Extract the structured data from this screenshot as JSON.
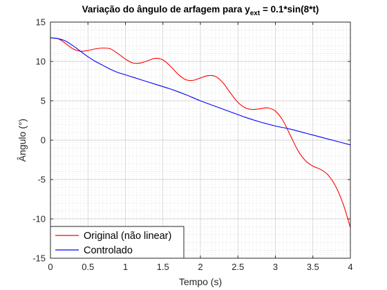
{
  "chart_data": {
    "type": "line",
    "title": {
      "prefix": "Variação do ângulo de arfagem para y",
      "subscript": "ext",
      "suffix": " = 0.1*sin(8*t)"
    },
    "xlabel": "Tempo (s)",
    "ylabel": "Ângulo (°)",
    "xlim": [
      0,
      4
    ],
    "ylim": [
      -15,
      15
    ],
    "xticks": [
      0,
      0.5,
      1,
      1.5,
      2,
      2.5,
      3,
      3.5,
      4
    ],
    "yticks": [
      -15,
      -10,
      -5,
      0,
      5,
      10,
      15
    ],
    "xtick_labels": [
      "0",
      "0.5",
      "1",
      "1.5",
      "2",
      "2.5",
      "3",
      "3.5",
      "4"
    ],
    "ytick_labels": [
      "-15",
      "-10",
      "-5",
      "0",
      "5",
      "10",
      "15"
    ],
    "grid": "major and minor, dotted",
    "legend_position": "bottom-left",
    "series": [
      {
        "name": "Original (não linear)",
        "color": "#ff0000",
        "x": [
          0,
          0.1,
          0.2,
          0.3,
          0.4,
          0.5,
          0.6,
          0.7,
          0.8,
          0.9,
          1.0,
          1.1,
          1.2,
          1.3,
          1.4,
          1.5,
          1.6,
          1.7,
          1.8,
          1.9,
          2.0,
          2.1,
          2.2,
          2.3,
          2.4,
          2.5,
          2.6,
          2.7,
          2.8,
          2.9,
          3.0,
          3.1,
          3.2,
          3.3,
          3.4,
          3.5,
          3.6,
          3.7,
          3.8,
          3.9,
          4.0
        ],
        "y": [
          13.0,
          12.9,
          12.3,
          11.6,
          11.3,
          11.4,
          11.6,
          11.7,
          11.6,
          11.0,
          10.3,
          9.8,
          9.8,
          10.1,
          10.4,
          10.2,
          9.4,
          8.4,
          7.7,
          7.6,
          7.9,
          8.2,
          8.1,
          7.3,
          6.0,
          4.8,
          4.1,
          3.9,
          4.0,
          4.1,
          3.7,
          2.5,
          0.6,
          -1.3,
          -2.6,
          -3.3,
          -3.7,
          -4.4,
          -5.8,
          -8.0,
          -11.1
        ]
      },
      {
        "name": "Controlado",
        "color": "#0000ff",
        "x": [
          0,
          0.1,
          0.2,
          0.3,
          0.4,
          0.5,
          0.6,
          0.7,
          0.8,
          0.9,
          1.0,
          1.2,
          1.4,
          1.6,
          1.8,
          2.0,
          2.2,
          2.4,
          2.6,
          2.8,
          3.0,
          3.2,
          3.4,
          3.6,
          3.8,
          4.0
        ],
        "y": [
          13.0,
          12.9,
          12.6,
          12.0,
          11.3,
          10.6,
          10.0,
          9.5,
          9.0,
          8.6,
          8.3,
          7.7,
          7.1,
          6.5,
          5.8,
          5.0,
          4.3,
          3.6,
          2.9,
          2.3,
          1.8,
          1.4,
          0.9,
          0.4,
          -0.1,
          -0.6
        ]
      }
    ]
  }
}
